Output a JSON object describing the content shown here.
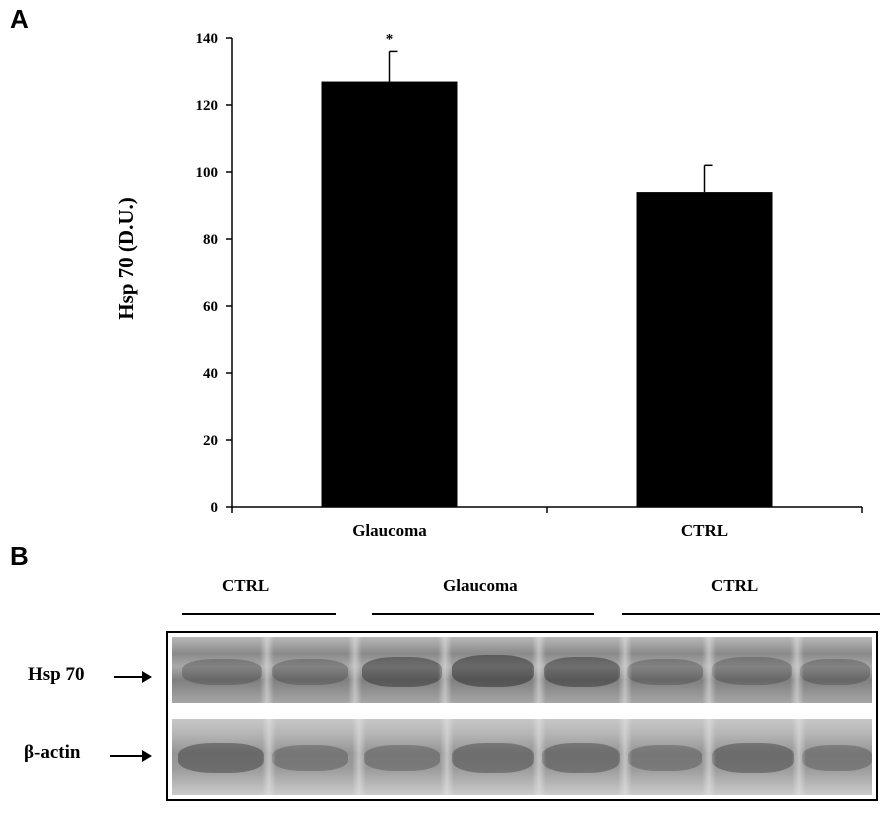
{
  "panels": {
    "a": "A",
    "b": "B"
  },
  "chart_data": {
    "type": "bar",
    "categories": [
      "Glaucoma",
      "CTRL"
    ],
    "values": [
      127,
      94
    ],
    "error": [
      9,
      8
    ],
    "annotations": [
      "*",
      ""
    ],
    "ylabel": "Hsp 70  (D.U.)",
    "xlabel": "",
    "ylim": [
      0,
      140
    ],
    "yticks": [
      0,
      20,
      40,
      60,
      80,
      100,
      120,
      140
    ],
    "grid": false,
    "colors": {
      "bar": "#000000"
    }
  },
  "western_blot": {
    "lane_groups": [
      "CTRL",
      "Glaucoma",
      "CTRL"
    ],
    "bands": [
      "Hsp 70",
      "β-actin"
    ]
  }
}
